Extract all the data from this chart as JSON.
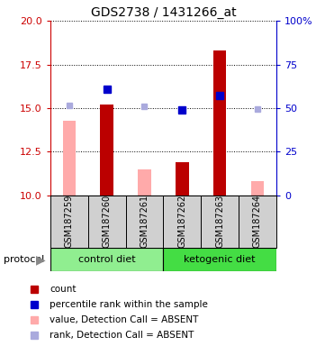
{
  "title": "GDS2738 / 1431266_at",
  "samples": [
    "GSM187259",
    "GSM187260",
    "GSM187261",
    "GSM187262",
    "GSM187263",
    "GSM187264"
  ],
  "ylim_left": [
    10,
    20
  ],
  "ylim_right": [
    0,
    100
  ],
  "yticks_left": [
    10,
    12.5,
    15,
    17.5,
    20
  ],
  "yticks_right": [
    0,
    25,
    50,
    75,
    100
  ],
  "ytick_labels_right": [
    "0",
    "25",
    "50",
    "75",
    "100%"
  ],
  "count_values": [
    null,
    15.2,
    null,
    11.9,
    18.3,
    null
  ],
  "rank_values": [
    null,
    16.1,
    null,
    14.9,
    15.7,
    null
  ],
  "absent_value_values": [
    14.3,
    null,
    11.5,
    null,
    null,
    10.8
  ],
  "absent_rank_values": [
    15.15,
    null,
    15.1,
    null,
    null,
    14.97
  ],
  "count_color": "#bb0000",
  "rank_color": "#0000cc",
  "absent_value_color": "#ffaaaa",
  "absent_rank_color": "#aaaadd",
  "bar_width": 0.35,
  "group1_color": "#90EE90",
  "group2_color": "#44dd44",
  "bg_color": "#d0d0d0",
  "plot_bg": "#ffffff",
  "left_axis_color": "#cc0000",
  "right_axis_color": "#0000cc",
  "legend_items": [
    {
      "color": "#bb0000",
      "marker": "s",
      "label": "count"
    },
    {
      "color": "#0000cc",
      "marker": "s",
      "label": "percentile rank within the sample"
    },
    {
      "color": "#ffaaaa",
      "marker": "s",
      "label": "value, Detection Call = ABSENT"
    },
    {
      "color": "#aaaadd",
      "marker": "s",
      "label": "rank, Detection Call = ABSENT"
    }
  ]
}
